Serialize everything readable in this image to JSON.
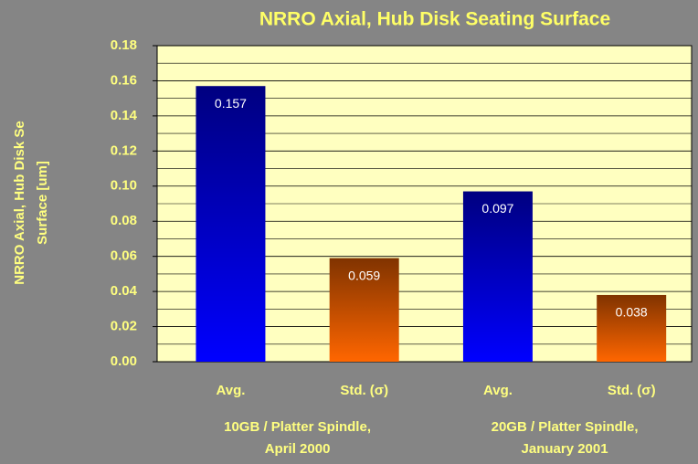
{
  "chart_data": {
    "type": "bar",
    "title": "NRRO Axial, Hub Disk Seating Surface",
    "y_label": [
      "NRRO Axial, Hub Disk Se",
      "Surface [um]"
    ],
    "categories": [
      "Avg.",
      "Std. (σ)",
      "Avg.",
      "Std. (σ)"
    ],
    "groups": [
      [
        "10GB / Platter Spindle,",
        "April 2000"
      ],
      [
        "20GB / Platter Spindle,",
        "January 2001"
      ]
    ],
    "values": [
      0.157,
      0.059,
      0.097,
      0.038
    ],
    "colors": [
      "#0000ff",
      "#ff6600",
      "#0000ff",
      "#ff6600"
    ],
    "ylim": [
      0,
      0.18
    ],
    "yticks": [
      {
        "value": 0,
        "label": "0.00"
      },
      {
        "value": 0.02,
        "label": "0.02"
      },
      {
        "value": 0.04,
        "label": "0.04"
      },
      {
        "value": 0.06,
        "label": "0.06"
      },
      {
        "value": 0.08,
        "label": "0.08"
      },
      {
        "value": 0.1,
        "label": "0.10"
      },
      {
        "value": 0.12,
        "label": "0.12"
      },
      {
        "value": 0.14,
        "label": "0.14"
      },
      {
        "value": 0.16,
        "label": "0.16"
      },
      {
        "value": 0.18,
        "label": "0.18"
      }
    ],
    "grid": true
  }
}
